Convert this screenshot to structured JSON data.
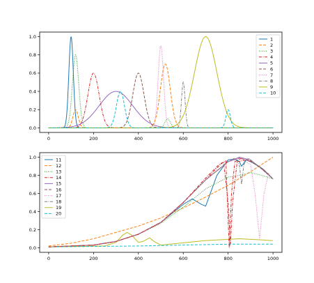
{
  "chart_data": [
    {
      "type": "line",
      "title": "",
      "xlabel": "",
      "ylabel": "",
      "xlim": [
        -40,
        1040
      ],
      "ylim": [
        -0.05,
        1.05
      ],
      "xticks": [
        "0",
        "200",
        "400",
        "600",
        "800",
        "1000"
      ],
      "yticks": [
        "0.0",
        "0.2",
        "0.4",
        "0.6",
        "0.8",
        "1.0"
      ],
      "grid": false,
      "legend_position": "top-right",
      "series": [
        {
          "name": "1",
          "color": "#1f77b4",
          "dash": "solid",
          "kind": "gauss",
          "mu": 100,
          "sigma": 10,
          "amp": 1.0
        },
        {
          "name": "2",
          "color": "#ff7f0e",
          "dash": "dashed",
          "kind": "gauss",
          "mu": 120,
          "sigma": 12,
          "amp": 0.2
        },
        {
          "name": "3",
          "color": "#2ca02c",
          "dash": "dotted",
          "kind": "gauss",
          "mu": 120,
          "sigma": 14,
          "amp": 0.8
        },
        {
          "name": "4",
          "color": "#d62728",
          "dash": "dashdot",
          "kind": "gauss",
          "mu": 200,
          "sigma": 25,
          "amp": 0.6
        },
        {
          "name": "5",
          "color": "#9467bd",
          "dash": "solid",
          "kind": "gauss",
          "mu": 300,
          "sigma": 75,
          "amp": 0.4
        },
        {
          "name": "6",
          "color": "#8c564b",
          "dash": "dashed",
          "kind": "gauss",
          "mu": 400,
          "sigma": 25,
          "amp": 0.6
        },
        {
          "name": "7",
          "color": "#e377c2",
          "dash": "dotted",
          "kind": "gauss",
          "mu": 500,
          "sigma": 12,
          "amp": 0.9
        },
        {
          "name": "8",
          "color": "#7f7f7f",
          "dash": "dashdot",
          "kind": "gauss",
          "mu": 600,
          "sigma": 8,
          "amp": 0.5
        },
        {
          "name": "9",
          "color": "#bcbd22",
          "dash": "solid",
          "kind": "gauss",
          "mu": 700,
          "sigma": 50,
          "amp": 1.0
        },
        {
          "name": "10",
          "color": "#17becf",
          "dash": "dashed",
          "kind": "gauss",
          "mu": 800,
          "sigma": 10,
          "amp": 0.2
        },
        {
          "name": "",
          "color": "#ff7f0e",
          "dash": "dashed",
          "kind": "gauss",
          "mu": 520,
          "sigma": 22,
          "amp": 0.7
        },
        {
          "name": "",
          "color": "#17becf",
          "dash": "dashed",
          "kind": "gauss",
          "mu": 320,
          "sigma": 18,
          "amp": 0.4
        },
        {
          "name": "",
          "color": "#2ca02c",
          "dash": "dotted",
          "kind": "gauss",
          "mu": 530,
          "sigma": 12,
          "amp": 0.1
        }
      ]
    },
    {
      "type": "line",
      "title": "",
      "xlabel": "",
      "ylabel": "",
      "xlim": [
        -40,
        1040
      ],
      "ylim": [
        -0.05,
        1.05
      ],
      "xticks": [
        "0",
        "200",
        "400",
        "600",
        "800",
        "1000"
      ],
      "yticks": [
        "0.0",
        "0.2",
        "0.4",
        "0.6",
        "0.8",
        "1.0"
      ],
      "grid": false,
      "legend_position": "top-left",
      "series": [
        {
          "name": "11",
          "color": "#1f77b4",
          "dash": "solid",
          "x": [
            0,
            200,
            300,
            400,
            500,
            600,
            640,
            680,
            700,
            750,
            800,
            830,
            850,
            860,
            880,
            900,
            950,
            1000
          ],
          "y": [
            0.01,
            0.03,
            0.07,
            0.15,
            0.28,
            0.48,
            0.54,
            0.48,
            0.46,
            0.8,
            0.97,
            0.98,
            0.95,
            0.9,
            0.97,
            0.95,
            0.88,
            0.76
          ]
        },
        {
          "name": "12",
          "color": "#ff7f0e",
          "dash": "dashed",
          "x": [
            0,
            100,
            200,
            300,
            400,
            500,
            600,
            700,
            800,
            900,
            1000
          ],
          "y": [
            0.02,
            0.05,
            0.1,
            0.17,
            0.24,
            0.33,
            0.44,
            0.56,
            0.69,
            0.84,
            1.0
          ]
        },
        {
          "name": "13",
          "color": "#2ca02c",
          "dash": "dotted",
          "x": [
            0,
            200,
            300,
            400,
            500,
            600,
            700,
            800,
            850,
            900,
            950,
            1000
          ],
          "y": [
            0.01,
            0.03,
            0.07,
            0.15,
            0.27,
            0.45,
            0.65,
            0.78,
            0.8,
            0.83,
            0.8,
            0.76
          ]
        },
        {
          "name": "14",
          "color": "#d62728",
          "dash": "dashdot",
          "x": [
            0,
            200,
            300,
            400,
            500,
            600,
            700,
            750,
            780,
            800,
            810,
            820,
            840,
            880,
            920,
            960,
            1000
          ],
          "y": [
            0.01,
            0.03,
            0.07,
            0.15,
            0.28,
            0.5,
            0.75,
            0.88,
            0.95,
            0.5,
            0.02,
            0.5,
            0.95,
            0.97,
            0.93,
            0.86,
            0.76
          ]
        },
        {
          "name": "15",
          "color": "#9467bd",
          "dash": "solid",
          "x": [
            0,
            200,
            300,
            400,
            500,
            600,
            700,
            800,
            850,
            900,
            950,
            1000
          ],
          "y": [
            0.01,
            0.03,
            0.07,
            0.15,
            0.28,
            0.5,
            0.75,
            0.95,
            1.0,
            0.97,
            0.87,
            0.76
          ]
        },
        {
          "name": "16",
          "color": "#8c564b",
          "dash": "dashed",
          "x": [
            0,
            200,
            300,
            400,
            500,
            600,
            700,
            800,
            850,
            900,
            950,
            1000
          ],
          "y": [
            0.01,
            0.03,
            0.07,
            0.15,
            0.28,
            0.5,
            0.75,
            0.95,
            0.99,
            0.96,
            0.87,
            0.76
          ]
        },
        {
          "name": "17",
          "color": "#e377c2",
          "dash": "dotted",
          "x": [
            0,
            200,
            300,
            400,
            500,
            600,
            700,
            800,
            850,
            900,
            920,
            940,
            960,
            980,
            1000
          ],
          "y": [
            0.01,
            0.03,
            0.07,
            0.15,
            0.28,
            0.5,
            0.75,
            0.95,
            0.99,
            0.92,
            0.6,
            0.1,
            0.6,
            0.82,
            0.76
          ]
        },
        {
          "name": "18",
          "color": "#7f7f7f",
          "dash": "dashdot",
          "x": [
            0,
            200,
            300,
            400,
            500,
            600,
            700,
            800,
            830,
            850,
            860,
            870,
            890,
            920,
            960,
            1000
          ],
          "y": [
            0.01,
            0.03,
            0.07,
            0.15,
            0.28,
            0.5,
            0.75,
            0.95,
            0.99,
            0.92,
            0.7,
            0.92,
            0.99,
            0.93,
            0.86,
            0.76
          ]
        },
        {
          "name": "19",
          "color": "#bcbd22",
          "dash": "solid",
          "x": [
            0,
            250,
            300,
            330,
            350,
            370,
            400,
            420,
            450,
            470,
            500,
            700,
            850,
            1000
          ],
          "y": [
            0.01,
            0.02,
            0.06,
            0.14,
            0.17,
            0.14,
            0.06,
            0.07,
            0.11,
            0.07,
            0.03,
            0.08,
            0.1,
            0.08
          ]
        },
        {
          "name": "20",
          "color": "#17becf",
          "dash": "dashed",
          "x": [
            0,
            200,
            400,
            600,
            800,
            1000
          ],
          "y": [
            0.01,
            0.015,
            0.02,
            0.03,
            0.04,
            0.04
          ]
        },
        {
          "name": "",
          "color": "#d62728",
          "dash": "dashdot",
          "x": [
            0,
            200,
            300,
            400,
            500,
            600,
            700,
            760,
            790,
            800,
            805,
            815,
            830,
            860
          ],
          "y": [
            0.01,
            0.03,
            0.07,
            0.15,
            0.28,
            0.5,
            0.77,
            0.92,
            0.96,
            0.3,
            0.0,
            0.6,
            0.95,
            0.99
          ]
        }
      ]
    }
  ]
}
